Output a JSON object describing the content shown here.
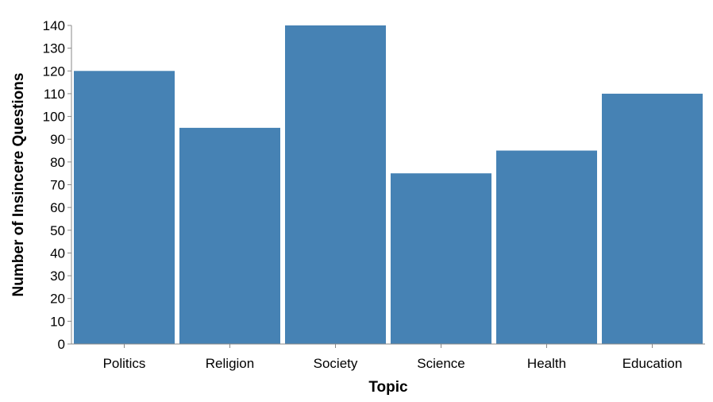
{
  "chart_data": {
    "type": "bar",
    "title": "",
    "xlabel": "Topic",
    "ylabel": "Number of Insincere Questions",
    "categories": [
      "Politics",
      "Religion",
      "Society",
      "Science",
      "Health",
      "Education"
    ],
    "values": [
      120,
      95,
      140,
      75,
      85,
      110
    ],
    "ylim": [
      0,
      140
    ],
    "yticks": [
      0,
      10,
      20,
      30,
      40,
      50,
      60,
      70,
      80,
      90,
      100,
      110,
      120,
      130,
      140
    ],
    "grid": false,
    "legend": "none",
    "bar_color": "#4682b4",
    "axis_color": "#888888"
  }
}
